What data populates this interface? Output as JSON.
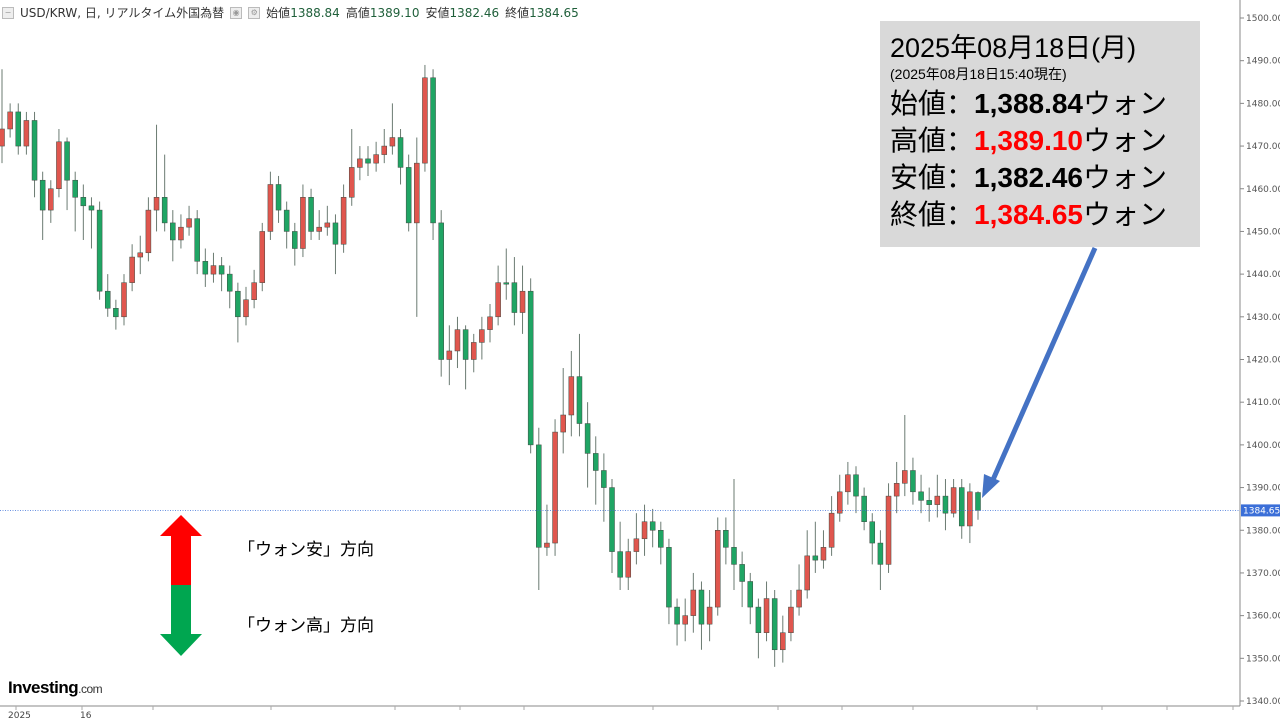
{
  "header": {
    "symbol": "USD/KRW, 日, リアルタイム外国為替",
    "open_label": "始値",
    "open": "1388.84",
    "high_label": "高値",
    "high": "1389.10",
    "low_label": "安値",
    "low": "1382.46",
    "close_label": "終値",
    "close": "1384.65"
  },
  "info_box": {
    "date": "2025年08月18日(月)",
    "asof": "(2025年08月18日15:40現在)",
    "rows": [
      {
        "label": "始値：",
        "value": "1,388.84",
        "unit": "ウォン",
        "highlight": false
      },
      {
        "label": "高値：",
        "value": "1,389.10",
        "unit": "ウォン",
        "highlight": true
      },
      {
        "label": "安値：",
        "value": "1,382.46",
        "unit": "ウォン",
        "highlight": false
      },
      {
        "label": "終値：",
        "value": "1,384.65",
        "unit": "ウォン",
        "highlight": true
      }
    ]
  },
  "legend": {
    "up_text": "「ウォン安」方向",
    "down_text": "「ウォン高」方向",
    "up_color": "#ff0000",
    "down_color": "#00a650"
  },
  "logo": {
    "main": "Investing",
    "suffix": ".com"
  },
  "colors": {
    "rising_candle": "#e0564e",
    "falling_candle": "#1fa564",
    "price_line": "#3b6fd8",
    "arrow": "#4472c4",
    "box_bg": "#d9d9d9"
  },
  "chart_data": {
    "type": "candlestick",
    "title": "USD/KRW, 日, リアルタイム外国為替",
    "ylim": [
      1340,
      1500
    ],
    "yticks": [
      "1500.00",
      "1490.00",
      "1480.00",
      "1470.00",
      "1460.00",
      "1450.00",
      "1440.00",
      "1430.00",
      "1420.00",
      "1410.00",
      "1400.00",
      "1390.00",
      "1380.00",
      "1370.00",
      "1360.00",
      "1350.00",
      "1340.00"
    ],
    "ytick_values": [
      1500,
      1490,
      1480,
      1470,
      1460,
      1450,
      1440,
      1430,
      1420,
      1410,
      1400,
      1390,
      1380,
      1370,
      1360,
      1350,
      1340
    ],
    "xtick_labels": [
      "2025",
      "16"
    ],
    "last_price": 1384.65,
    "last_price_label": "1384.65",
    "candles_ohlc": [
      [
        1470,
        1488,
        1466,
        1474
      ],
      [
        1474,
        1480,
        1472,
        1478
      ],
      [
        1478,
        1480,
        1468,
        1470
      ],
      [
        1470,
        1478,
        1468,
        1476
      ],
      [
        1476,
        1478,
        1458,
        1462
      ],
      [
        1462,
        1464,
        1448,
        1455
      ],
      [
        1455,
        1462,
        1452,
        1460
      ],
      [
        1460,
        1474,
        1458,
        1471
      ],
      [
        1471,
        1472,
        1455,
        1462
      ],
      [
        1462,
        1464,
        1450,
        1458
      ],
      [
        1458,
        1461,
        1448,
        1456
      ],
      [
        1456,
        1458,
        1446,
        1455
      ],
      [
        1455,
        1457,
        1434,
        1436
      ],
      [
        1436,
        1440,
        1430,
        1432
      ],
      [
        1432,
        1434,
        1427,
        1430
      ],
      [
        1430,
        1440,
        1428,
        1438
      ],
      [
        1438,
        1447,
        1436,
        1444
      ],
      [
        1444,
        1449,
        1440,
        1445
      ],
      [
        1445,
        1458,
        1443,
        1455
      ],
      [
        1455,
        1475,
        1450,
        1458
      ],
      [
        1458,
        1468,
        1450,
        1452
      ],
      [
        1452,
        1455,
        1443,
        1448
      ],
      [
        1448,
        1454,
        1446,
        1451
      ],
      [
        1451,
        1456,
        1449,
        1453
      ],
      [
        1453,
        1455,
        1440,
        1443
      ],
      [
        1443,
        1446,
        1437,
        1440
      ],
      [
        1440,
        1445,
        1438,
        1442
      ],
      [
        1442,
        1444,
        1436,
        1440
      ],
      [
        1440,
        1442,
        1432,
        1436
      ],
      [
        1436,
        1438,
        1424,
        1430
      ],
      [
        1430,
        1437,
        1428,
        1434
      ],
      [
        1434,
        1441,
        1432,
        1438
      ],
      [
        1438,
        1452,
        1436,
        1450
      ],
      [
        1450,
        1464,
        1448,
        1461
      ],
      [
        1461,
        1463,
        1452,
        1455
      ],
      [
        1455,
        1457,
        1446,
        1450
      ],
      [
        1450,
        1452,
        1442,
        1446
      ],
      [
        1446,
        1461,
        1444,
        1458
      ],
      [
        1458,
        1460,
        1448,
        1450
      ],
      [
        1450,
        1455,
        1448,
        1451
      ],
      [
        1451,
        1456,
        1449,
        1452
      ],
      [
        1452,
        1454,
        1440,
        1447
      ],
      [
        1447,
        1461,
        1445,
        1458
      ],
      [
        1458,
        1474,
        1456,
        1465
      ],
      [
        1465,
        1470,
        1462,
        1467
      ],
      [
        1467,
        1470,
        1463,
        1466
      ],
      [
        1466,
        1471,
        1464,
        1468
      ],
      [
        1468,
        1474,
        1466,
        1470
      ],
      [
        1470,
        1480,
        1468,
        1472
      ],
      [
        1472,
        1474,
        1461,
        1465
      ],
      [
        1465,
        1468,
        1450,
        1452
      ],
      [
        1452,
        1472,
        1430,
        1466
      ],
      [
        1466,
        1489,
        1464,
        1486
      ],
      [
        1486,
        1488,
        1448,
        1452
      ],
      [
        1452,
        1455,
        1416,
        1420
      ],
      [
        1420,
        1428,
        1414,
        1422
      ],
      [
        1422,
        1430,
        1418,
        1427
      ],
      [
        1427,
        1428,
        1413,
        1420
      ],
      [
        1420,
        1426,
        1417,
        1424
      ],
      [
        1424,
        1430,
        1420,
        1427
      ],
      [
        1427,
        1433,
        1424,
        1430
      ],
      [
        1430,
        1442,
        1428,
        1438
      ],
      [
        1438,
        1446,
        1434,
        1438
      ],
      [
        1438,
        1444,
        1428,
        1431
      ],
      [
        1431,
        1442,
        1426,
        1436
      ],
      [
        1436,
        1439,
        1398,
        1400
      ],
      [
        1400,
        1404,
        1366,
        1376
      ],
      [
        1376,
        1386,
        1374,
        1377
      ],
      [
        1377,
        1406,
        1374,
        1403
      ],
      [
        1403,
        1418,
        1398,
        1407
      ],
      [
        1407,
        1422,
        1402,
        1416
      ],
      [
        1416,
        1426,
        1402,
        1405
      ],
      [
        1405,
        1410,
        1390,
        1398
      ],
      [
        1398,
        1402,
        1386,
        1394
      ],
      [
        1394,
        1398,
        1382,
        1390
      ],
      [
        1390,
        1392,
        1370,
        1375
      ],
      [
        1375,
        1382,
        1366,
        1369
      ],
      [
        1369,
        1378,
        1366,
        1375
      ],
      [
        1375,
        1384,
        1372,
        1378
      ],
      [
        1378,
        1386,
        1374,
        1382
      ],
      [
        1382,
        1385,
        1376,
        1380
      ],
      [
        1380,
        1382,
        1372,
        1376
      ],
      [
        1376,
        1378,
        1358,
        1362
      ],
      [
        1362,
        1364,
        1353,
        1358
      ],
      [
        1358,
        1364,
        1354,
        1360
      ],
      [
        1360,
        1370,
        1356,
        1366
      ],
      [
        1366,
        1368,
        1352,
        1358
      ],
      [
        1358,
        1366,
        1354,
        1362
      ],
      [
        1362,
        1383,
        1360,
        1380
      ],
      [
        1380,
        1383,
        1372,
        1376
      ],
      [
        1376,
        1392,
        1366,
        1372
      ],
      [
        1372,
        1375,
        1362,
        1368
      ],
      [
        1368,
        1370,
        1358,
        1362
      ],
      [
        1362,
        1364,
        1350,
        1356
      ],
      [
        1356,
        1368,
        1354,
        1364
      ],
      [
        1364,
        1366,
        1348,
        1352
      ],
      [
        1352,
        1360,
        1349,
        1356
      ],
      [
        1356,
        1366,
        1354,
        1362
      ],
      [
        1362,
        1372,
        1360,
        1366
      ],
      [
        1366,
        1380,
        1364,
        1374
      ],
      [
        1374,
        1382,
        1370,
        1373
      ],
      [
        1373,
        1380,
        1371,
        1376
      ],
      [
        1376,
        1388,
        1374,
        1384
      ],
      [
        1384,
        1393,
        1382,
        1389
      ],
      [
        1389,
        1396,
        1386,
        1393
      ],
      [
        1393,
        1395,
        1384,
        1388
      ],
      [
        1388,
        1390,
        1380,
        1382
      ],
      [
        1382,
        1384,
        1372,
        1377
      ],
      [
        1377,
        1380,
        1366,
        1372
      ],
      [
        1372,
        1391,
        1370,
        1388
      ],
      [
        1388,
        1396,
        1384,
        1391
      ],
      [
        1391,
        1407,
        1388,
        1394
      ],
      [
        1394,
        1397,
        1386,
        1389
      ],
      [
        1389,
        1393,
        1384,
        1387
      ],
      [
        1387,
        1390,
        1382,
        1386
      ],
      [
        1386,
        1393,
        1383,
        1388
      ],
      [
        1388,
        1392,
        1380,
        1384
      ],
      [
        1384,
        1392,
        1383,
        1390
      ],
      [
        1390,
        1392,
        1378,
        1381
      ],
      [
        1381,
        1391,
        1377,
        1389
      ],
      [
        1388.84,
        1389.1,
        1382.46,
        1384.65
      ]
    ]
  }
}
